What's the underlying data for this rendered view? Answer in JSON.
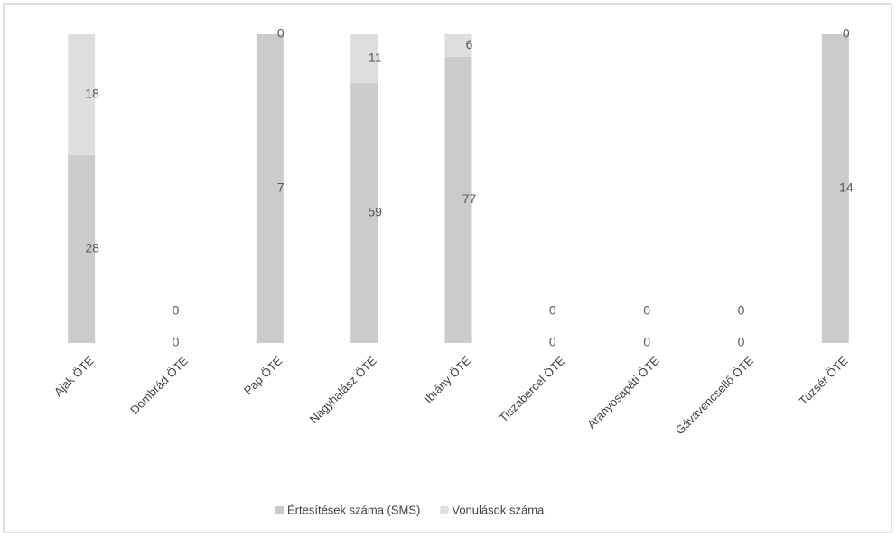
{
  "chart_data": {
    "type": "bar",
    "stacking": "percent",
    "categories": [
      "Ajak ÖTE",
      "Dombrád ÖTE",
      "Pap ÖTE",
      "Nagyhalász ÖTE",
      "Ibrány ÖTE",
      "Tiszabercel ÖTE",
      "Aranyosapáti ÖTE",
      "Gávavencsellő ÖTE",
      "Tuzsér ÖTE"
    ],
    "series": [
      {
        "name": "Értesítések száma (SMS)",
        "color": "#cbcbcb",
        "values": [
          28,
          0,
          7,
          59,
          77,
          0,
          0,
          0,
          14
        ]
      },
      {
        "name": "Vonulások száma",
        "color": "#dedede",
        "values": [
          18,
          0,
          0,
          11,
          6,
          0,
          0,
          0,
          0
        ]
      }
    ]
  }
}
